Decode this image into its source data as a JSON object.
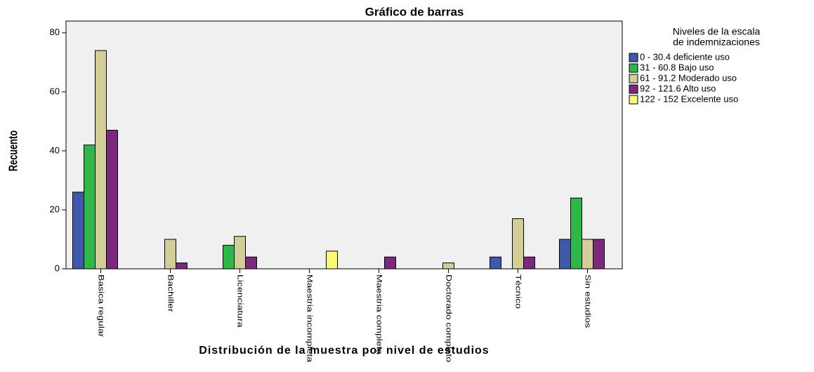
{
  "chart_data": {
    "type": "bar",
    "title": "Gráfico de barras",
    "x_label": "Distribución de la muestra por nivel de estudios",
    "y_label": "Recuento",
    "legend_title": [
      "Niveles de la escala",
      "de indemnizaciones"
    ],
    "legend_position": "right",
    "categories": [
      "Basica regular",
      "Bachiller",
      "Licenciatura",
      "Maestria incompleta",
      "Maestria completa",
      "Doctorado completo",
      "Técnico",
      "Sin estudios"
    ],
    "series": [
      {
        "name": "0 - 30.4 deficiente uso",
        "color": "#3e58ac",
        "values": [
          26,
          null,
          null,
          null,
          null,
          null,
          4,
          10
        ]
      },
      {
        "name": "31 - 60.8 Bajo uso",
        "color": "#2eb848",
        "values": [
          42,
          null,
          8,
          null,
          null,
          null,
          null,
          24
        ]
      },
      {
        "name": "61 - 91.2 Moderado uso",
        "color": "#d3ce97",
        "values": [
          74,
          10,
          11,
          null,
          null,
          2,
          17,
          10
        ]
      },
      {
        "name": "92 - 121.6 Alto uso",
        "color": "#7c287d",
        "values": [
          47,
          2,
          4,
          null,
          4,
          null,
          4,
          10
        ]
      },
      {
        "name": "122 - 152 Excelente uso",
        "color": "#fbf873",
        "values": [
          null,
          null,
          null,
          6,
          null,
          null,
          null,
          null
        ]
      }
    ],
    "ylim": [
      0,
      84
    ],
    "yticks": [
      0,
      20,
      40,
      60,
      80
    ],
    "grid": false
  }
}
